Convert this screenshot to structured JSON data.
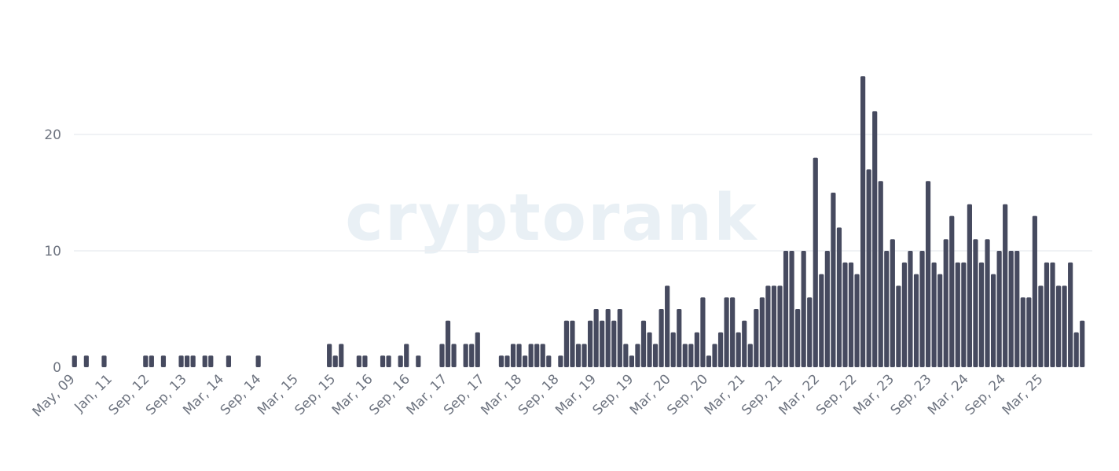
{
  "chart_data": {
    "type": "bar",
    "watermark": "cryptorank",
    "yticks": [
      0,
      10,
      20
    ],
    "ylim": [
      0,
      25
    ],
    "grid": true,
    "xticks": [
      "May, 09",
      "Jan, 11",
      "Sep, 12",
      "Sep, 13",
      "Mar, 14",
      "Sep, 14",
      "Mar, 15",
      "Sep, 15",
      "Mar, 16",
      "Sep, 16",
      "Mar, 17",
      "Sep, 17",
      "Mar, 18",
      "Sep, 18",
      "Mar, 19",
      "Sep, 19",
      "Mar, 20",
      "Sep, 20",
      "Mar, 21",
      "Sep, 21",
      "Mar, 22",
      "Sep, 22",
      "Mar, 23",
      "Sep, 23",
      "Mar, 24",
      "Sep, 24",
      "Mar, 25"
    ],
    "color": "#464a5f",
    "values": [
      1,
      0,
      1,
      0,
      0,
      1,
      0,
      0,
      0,
      0,
      0,
      0,
      1,
      1,
      0,
      1,
      0,
      0,
      1,
      1,
      1,
      0,
      1,
      1,
      0,
      0,
      1,
      0,
      0,
      0,
      0,
      1,
      0,
      0,
      0,
      0,
      0,
      0,
      0,
      0,
      0,
      0,
      0,
      2,
      1,
      2,
      0,
      0,
      1,
      1,
      0,
      0,
      1,
      1,
      0,
      1,
      2,
      0,
      1,
      0,
      0,
      0,
      2,
      4,
      2,
      0,
      2,
      2,
      3,
      0,
      0,
      0,
      1,
      1,
      2,
      2,
      1,
      2,
      2,
      2,
      1,
      0,
      1,
      4,
      4,
      2,
      2,
      4,
      5,
      4,
      5,
      4,
      5,
      2,
      1,
      2,
      4,
      3,
      2,
      5,
      7,
      3,
      5,
      2,
      2,
      3,
      6,
      1,
      2,
      3,
      6,
      6,
      3,
      4,
      2,
      5,
      6,
      7,
      7,
      7,
      10,
      10,
      5,
      10,
      6,
      18,
      8,
      10,
      15,
      12,
      9,
      9,
      8,
      25,
      17,
      22,
      16,
      10,
      11,
      7,
      9,
      10,
      8,
      10,
      16,
      9,
      8,
      11,
      13,
      9,
      9,
      14,
      11,
      9,
      11,
      8,
      10,
      14,
      10,
      10,
      6,
      6,
      13,
      7,
      9,
      9,
      7,
      7,
      9,
      3,
      4
    ]
  }
}
